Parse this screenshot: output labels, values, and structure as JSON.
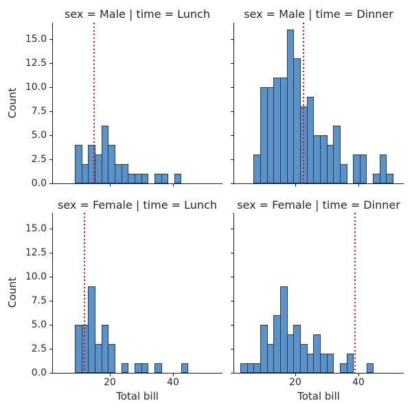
{
  "chart_data": {
    "type": "bar",
    "subtype": "faceted-histogram-grid",
    "facet_rows": [
      "sex = Male",
      "sex = Female"
    ],
    "facet_cols": [
      "time = Lunch",
      "time = Dinner"
    ],
    "bin_width": 2.1,
    "xlabel": "Total bill",
    "ylabel": "Count",
    "xlim": [
      0.5,
      54.5
    ],
    "ylim": [
      0,
      16.7
    ],
    "grid": "off",
    "axes": {
      "ytick_values": [
        0,
        2.5,
        5,
        7.5,
        10,
        12.5,
        15
      ],
      "ytick_labels": [
        "0.0",
        "2.5",
        "5.0",
        "7.5",
        "10.0",
        "12.5",
        "15.0"
      ],
      "xtick_values": [
        20,
        40
      ],
      "xtick_labels": [
        "20",
        "40"
      ]
    },
    "panels": [
      {
        "title": "sex = Male | time = Lunch",
        "row": 0,
        "col": 0,
        "bin_start": 8.9,
        "counts": [
          4,
          2,
          4,
          3,
          6,
          4,
          2,
          2,
          1,
          1,
          1,
          0,
          1,
          1,
          0,
          1
        ],
        "vline_x": 15.0,
        "total": 33
      },
      {
        "title": "sex = Male | time = Dinner",
        "row": 0,
        "col": 1,
        "bin_start": 6.8,
        "counts": [
          3,
          10,
          10,
          11,
          11,
          16,
          13,
          8,
          9,
          5,
          5,
          4,
          6,
          2,
          0,
          3,
          3,
          0,
          1,
          3,
          1
        ],
        "vline_x": 22.7,
        "total": 124
      },
      {
        "title": "sex = Female | time = Lunch",
        "row": 1,
        "col": 0,
        "bin_start": 8.9,
        "counts": [
          5,
          5,
          9,
          3,
          5,
          3,
          0,
          1,
          0,
          1,
          1,
          0,
          1,
          0,
          0,
          0,
          1
        ],
        "vline_x": 11.9,
        "total": 35
      },
      {
        "title": "sex = Female | time = Dinner",
        "row": 1,
        "col": 1,
        "bin_start": 2.6,
        "counts": [
          1,
          1,
          1,
          5,
          3,
          6,
          9,
          4,
          5,
          3,
          2,
          4,
          2,
          2,
          0,
          1,
          2,
          0,
          0,
          1
        ],
        "vline_x": 38.9,
        "total": 52
      }
    ],
    "colors": {
      "bar_fill": "#5b92c7",
      "bar_edge": "#1e3a56",
      "vline": "#e60000",
      "spine": "#1a1a1a",
      "text": "#262626"
    },
    "legend": "none"
  }
}
